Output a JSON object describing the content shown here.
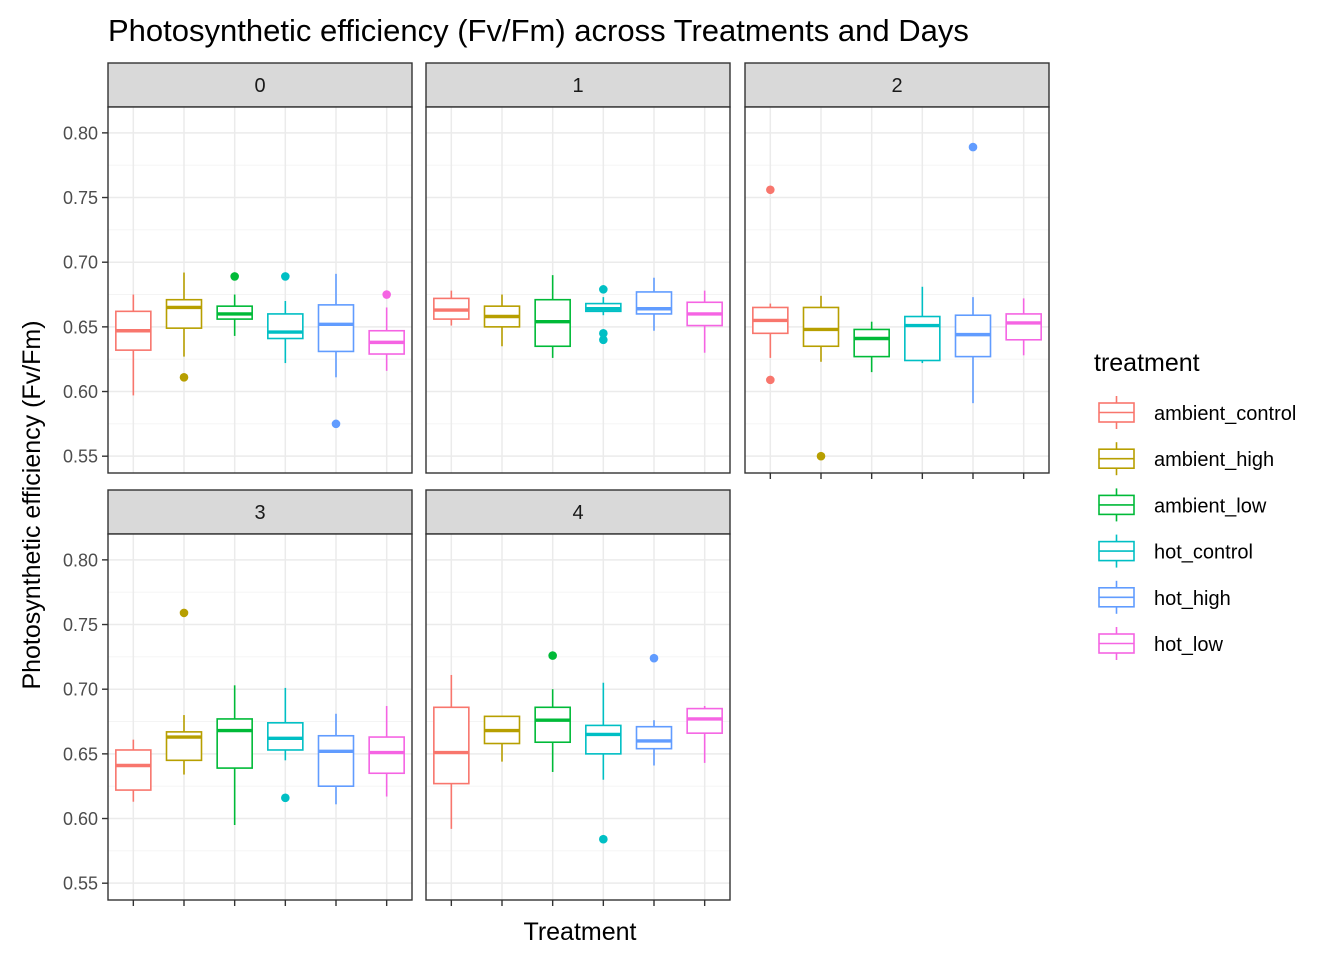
{
  "chart_data": {
    "type": "boxplot",
    "title": "Photosynthetic efficiency (Fv/Fm) across Treatments and Days",
    "xlabel": "Treatment",
    "ylabel": "Photosynthetic efficiency (Fv/Fm)",
    "ylim": [
      0.537,
      0.82
    ],
    "yticks": [
      "0.55",
      "0.60",
      "0.65",
      "0.70",
      "0.75",
      "0.80"
    ],
    "ytick_values": [
      0.55,
      0.6,
      0.65,
      0.7,
      0.75,
      0.8
    ],
    "x_tick_labels_shown": false,
    "grid": true,
    "facet_variable": "day",
    "legend": {
      "title": "treatment",
      "position": "right",
      "entries": [
        "ambient_control",
        "ambient_high",
        "ambient_low",
        "hot_control",
        "hot_high",
        "hot_low"
      ]
    },
    "colors": {
      "ambient_control": "#F8766D",
      "ambient_high": "#B79F00",
      "ambient_low": "#00BA38",
      "hot_control": "#00BFC4",
      "hot_high": "#619CFF",
      "hot_low": "#F564E3"
    },
    "treatments": [
      "ambient_control",
      "ambient_high",
      "ambient_low",
      "hot_control",
      "hot_high",
      "hot_low"
    ],
    "facets": [
      {
        "label": "0",
        "boxes": [
          {
            "treatment": "ambient_control",
            "lower_whisker": 0.597,
            "q1": 0.632,
            "median": 0.647,
            "q3": 0.662,
            "upper_whisker": 0.675,
            "outliers": []
          },
          {
            "treatment": "ambient_high",
            "lower_whisker": 0.627,
            "q1": 0.649,
            "median": 0.665,
            "q3": 0.671,
            "upper_whisker": 0.692,
            "outliers": [
              0.611
            ]
          },
          {
            "treatment": "ambient_low",
            "lower_whisker": 0.643,
            "q1": 0.656,
            "median": 0.66,
            "q3": 0.666,
            "upper_whisker": 0.675,
            "outliers": [
              0.689
            ]
          },
          {
            "treatment": "hot_control",
            "lower_whisker": 0.622,
            "q1": 0.641,
            "median": 0.646,
            "q3": 0.66,
            "upper_whisker": 0.67,
            "outliers": [
              0.689
            ]
          },
          {
            "treatment": "hot_high",
            "lower_whisker": 0.611,
            "q1": 0.631,
            "median": 0.652,
            "q3": 0.667,
            "upper_whisker": 0.691,
            "outliers": [
              0.575
            ]
          },
          {
            "treatment": "hot_low",
            "lower_whisker": 0.616,
            "q1": 0.629,
            "median": 0.638,
            "q3": 0.647,
            "upper_whisker": 0.665,
            "outliers": [
              0.675
            ]
          }
        ]
      },
      {
        "label": "1",
        "boxes": [
          {
            "treatment": "ambient_control",
            "lower_whisker": 0.651,
            "q1": 0.656,
            "median": 0.663,
            "q3": 0.672,
            "upper_whisker": 0.678,
            "outliers": []
          },
          {
            "treatment": "ambient_high",
            "lower_whisker": 0.635,
            "q1": 0.65,
            "median": 0.658,
            "q3": 0.666,
            "upper_whisker": 0.675,
            "outliers": []
          },
          {
            "treatment": "ambient_low",
            "lower_whisker": 0.626,
            "q1": 0.635,
            "median": 0.654,
            "q3": 0.671,
            "upper_whisker": 0.69,
            "outliers": []
          },
          {
            "treatment": "hot_control",
            "lower_whisker": 0.659,
            "q1": 0.662,
            "median": 0.664,
            "q3": 0.668,
            "upper_whisker": 0.673,
            "outliers": [
              0.679,
              0.645,
              0.64
            ]
          },
          {
            "treatment": "hot_high",
            "lower_whisker": 0.647,
            "q1": 0.66,
            "median": 0.664,
            "q3": 0.677,
            "upper_whisker": 0.688,
            "outliers": []
          },
          {
            "treatment": "hot_low",
            "lower_whisker": 0.63,
            "q1": 0.651,
            "median": 0.66,
            "q3": 0.669,
            "upper_whisker": 0.678,
            "outliers": []
          }
        ]
      },
      {
        "label": "2",
        "boxes": [
          {
            "treatment": "ambient_control",
            "lower_whisker": 0.626,
            "q1": 0.645,
            "median": 0.655,
            "q3": 0.665,
            "upper_whisker": 0.668,
            "outliers": [
              0.756,
              0.609
            ]
          },
          {
            "treatment": "ambient_high",
            "lower_whisker": 0.623,
            "q1": 0.635,
            "median": 0.648,
            "q3": 0.665,
            "upper_whisker": 0.674,
            "outliers": [
              0.55
            ]
          },
          {
            "treatment": "ambient_low",
            "lower_whisker": 0.615,
            "q1": 0.627,
            "median": 0.641,
            "q3": 0.648,
            "upper_whisker": 0.654,
            "outliers": []
          },
          {
            "treatment": "hot_control",
            "lower_whisker": 0.622,
            "q1": 0.624,
            "median": 0.651,
            "q3": 0.658,
            "upper_whisker": 0.681,
            "outliers": []
          },
          {
            "treatment": "hot_high",
            "lower_whisker": 0.591,
            "q1": 0.627,
            "median": 0.644,
            "q3": 0.659,
            "upper_whisker": 0.673,
            "outliers": [
              0.789
            ]
          },
          {
            "treatment": "hot_low",
            "lower_whisker": 0.628,
            "q1": 0.64,
            "median": 0.653,
            "q3": 0.66,
            "upper_whisker": 0.672,
            "outliers": []
          }
        ]
      },
      {
        "label": "3",
        "boxes": [
          {
            "treatment": "ambient_control",
            "lower_whisker": 0.613,
            "q1": 0.622,
            "median": 0.641,
            "q3": 0.653,
            "upper_whisker": 0.661,
            "outliers": []
          },
          {
            "treatment": "ambient_high",
            "lower_whisker": 0.634,
            "q1": 0.645,
            "median": 0.663,
            "q3": 0.667,
            "upper_whisker": 0.68,
            "outliers": [
              0.759
            ]
          },
          {
            "treatment": "ambient_low",
            "lower_whisker": 0.595,
            "q1": 0.639,
            "median": 0.668,
            "q3": 0.677,
            "upper_whisker": 0.703,
            "outliers": []
          },
          {
            "treatment": "hot_control",
            "lower_whisker": 0.645,
            "q1": 0.653,
            "median": 0.662,
            "q3": 0.674,
            "upper_whisker": 0.701,
            "outliers": [
              0.616
            ]
          },
          {
            "treatment": "hot_high",
            "lower_whisker": 0.611,
            "q1": 0.625,
            "median": 0.652,
            "q3": 0.664,
            "upper_whisker": 0.681,
            "outliers": []
          },
          {
            "treatment": "hot_low",
            "lower_whisker": 0.617,
            "q1": 0.635,
            "median": 0.651,
            "q3": 0.663,
            "upper_whisker": 0.687,
            "outliers": []
          }
        ]
      },
      {
        "label": "4",
        "boxes": [
          {
            "treatment": "ambient_control",
            "lower_whisker": 0.592,
            "q1": 0.627,
            "median": 0.651,
            "q3": 0.686,
            "upper_whisker": 0.711,
            "outliers": []
          },
          {
            "treatment": "ambient_high",
            "lower_whisker": 0.644,
            "q1": 0.658,
            "median": 0.668,
            "q3": 0.679,
            "upper_whisker": 0.679,
            "outliers": []
          },
          {
            "treatment": "ambient_low",
            "lower_whisker": 0.636,
            "q1": 0.659,
            "median": 0.676,
            "q3": 0.686,
            "upper_whisker": 0.7,
            "outliers": [
              0.726
            ]
          },
          {
            "treatment": "hot_control",
            "lower_whisker": 0.63,
            "q1": 0.65,
            "median": 0.665,
            "q3": 0.672,
            "upper_whisker": 0.705,
            "outliers": [
              0.584
            ]
          },
          {
            "treatment": "hot_high",
            "lower_whisker": 0.641,
            "q1": 0.654,
            "median": 0.66,
            "q3": 0.671,
            "upper_whisker": 0.676,
            "outliers": [
              0.724
            ]
          },
          {
            "treatment": "hot_low",
            "lower_whisker": 0.643,
            "q1": 0.666,
            "median": 0.677,
            "q3": 0.685,
            "upper_whisker": 0.687,
            "outliers": []
          }
        ]
      }
    ]
  }
}
